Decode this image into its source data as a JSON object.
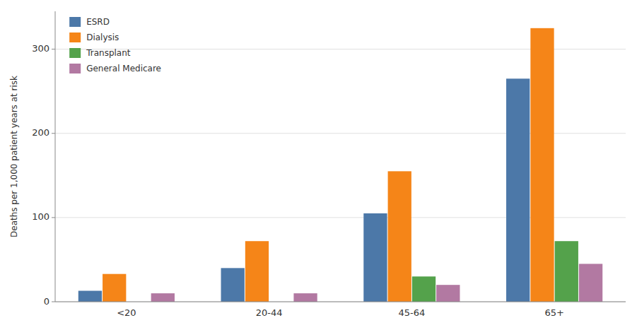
{
  "chart_data": {
    "type": "bar",
    "categories": [
      "<20",
      "20-44",
      "45-64",
      "65+"
    ],
    "series": [
      {
        "name": "ESRD",
        "color": "#4c78a8",
        "values": [
          13,
          40,
          105,
          265
        ]
      },
      {
        "name": "Dialysis",
        "color": "#f58518",
        "values": [
          33,
          72,
          155,
          325
        ]
      },
      {
        "name": "Transplant",
        "color": "#54a24b",
        "values": [
          0,
          0,
          30,
          72
        ]
      },
      {
        "name": "General Medicare",
        "color": "#b279a2",
        "values": [
          10,
          10,
          20,
          45
        ]
      }
    ],
    "ylabel": "Deaths per 1,000 patient years at risk",
    "ylim": [
      0,
      345
    ],
    "yticks": [
      0,
      100,
      200,
      300
    ],
    "grid": true,
    "legend": "upper left"
  }
}
